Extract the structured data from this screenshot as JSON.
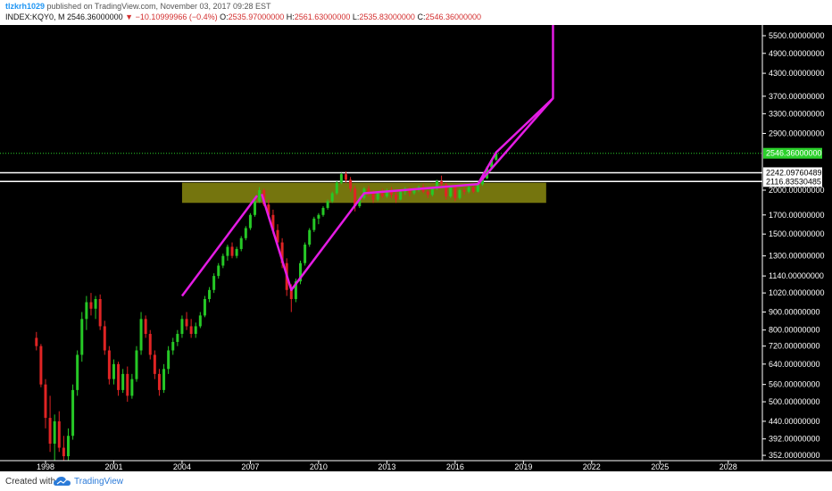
{
  "header": {
    "user": "tlzkrh1029",
    "published": "published on TradingView.com, November 03, 2017 09:28 EST",
    "symbol": "INDEX:KQY0, M",
    "last": "2546.36000000",
    "change": "−10.10999966 (−0.4%)",
    "o_label": "O:",
    "o_value": "2535.97000000",
    "h_label": "H:",
    "h_value": "2561.63000000",
    "l_label": "L:",
    "l_value": "2535.83000000",
    "c_label": "C:",
    "c_value": "2546.36000000"
  },
  "footer": {
    "created_with": "Created with",
    "brand": "TradingView"
  },
  "colors": {
    "background": "#000000",
    "up_candle": "#26c826",
    "down_candle": "#e02424",
    "pattern": "#e41ce4",
    "zone": "#8a8a10",
    "price_line": "#2bd12b"
  },
  "chart_data": {
    "type": "candlestick",
    "y_scale": "log",
    "x_ticks": [
      "1998",
      "2001",
      "2004",
      "2007",
      "2010",
      "2013",
      "2016",
      "2019",
      "2022",
      "2025",
      "2028"
    ],
    "y_ticks": [
      {
        "value": 5500,
        "label": "5500.00000000"
      },
      {
        "value": 4900,
        "label": "4900.00000000"
      },
      {
        "value": 4300,
        "label": "4300.00000000"
      },
      {
        "value": 3700,
        "label": "3700.00000000"
      },
      {
        "value": 3300,
        "label": "3300.00000000"
      },
      {
        "value": 2900,
        "label": "2900.00000000"
      },
      {
        "value": 2000,
        "label": "2000.00000000"
      },
      {
        "value": 1700,
        "label": "1700.00000000"
      },
      {
        "value": 1500,
        "label": "1500.00000000"
      },
      {
        "value": 1300,
        "label": "1300.00000000"
      },
      {
        "value": 1140,
        "label": "1140.00000000"
      },
      {
        "value": 1020,
        "label": "1020.00000000"
      },
      {
        "value": 900,
        "label": "900.00000000"
      },
      {
        "value": 800,
        "label": "800.00000000"
      },
      {
        "value": 720,
        "label": "720.00000000"
      },
      {
        "value": 640,
        "label": "640.00000000"
      },
      {
        "value": 560,
        "label": "560.00000000"
      },
      {
        "value": 500,
        "label": "500.00000000"
      },
      {
        "value": 440,
        "label": "440.00000000"
      },
      {
        "value": 392,
        "label": "392.00000000"
      },
      {
        "value": 352,
        "label": "352.00000000"
      }
    ],
    "ylim": [
      340,
      5900
    ],
    "xlim": [
      1996.0,
      2029.5
    ],
    "last_price": {
      "value": 2546.36,
      "label": "2546.36000000"
    },
    "horizontal_levels": [
      {
        "value": 2242.0976,
        "label": "2242.09760489"
      },
      {
        "value": 2116.8353,
        "label": "2116.83530485"
      }
    ],
    "zone": {
      "x0": 2004.0,
      "x1": 2020.0,
      "y_low": 1840,
      "y_high": 2100
    },
    "pattern_lines": [
      [
        [
          2007.5,
          1950
        ],
        [
          2008.8,
          1040
        ],
        [
          2012.0,
          1960
        ],
        [
          2017.0,
          2080
        ],
        [
          2017.8,
          2560
        ],
        [
          2020.3,
          3650
        ],
        [
          2020.3,
          5950
        ]
      ],
      [
        [
          2004.0,
          1000
        ],
        [
          2007.3,
          1930
        ]
      ],
      [
        [
          2017.0,
          2080
        ],
        [
          2020.3,
          3650
        ]
      ]
    ],
    "candles": [
      {
        "x": 1997.6,
        "o": 760,
        "h": 790,
        "l": 700,
        "c": 720
      },
      {
        "x": 1997.8,
        "o": 720,
        "h": 730,
        "l": 550,
        "c": 560
      },
      {
        "x": 1998.0,
        "o": 560,
        "h": 580,
        "l": 420,
        "c": 450
      },
      {
        "x": 1998.2,
        "o": 450,
        "h": 520,
        "l": 360,
        "c": 380
      },
      {
        "x": 1998.4,
        "o": 380,
        "h": 460,
        "l": 340,
        "c": 440
      },
      {
        "x": 1998.6,
        "o": 440,
        "h": 470,
        "l": 360,
        "c": 370
      },
      {
        "x": 1998.8,
        "o": 370,
        "h": 400,
        "l": 340,
        "c": 350
      },
      {
        "x": 1999.0,
        "o": 350,
        "h": 420,
        "l": 340,
        "c": 400
      },
      {
        "x": 1999.2,
        "o": 400,
        "h": 560,
        "l": 390,
        "c": 540
      },
      {
        "x": 1999.4,
        "o": 540,
        "h": 700,
        "l": 520,
        "c": 680
      },
      {
        "x": 1999.6,
        "o": 680,
        "h": 900,
        "l": 650,
        "c": 860
      },
      {
        "x": 1999.8,
        "o": 860,
        "h": 1000,
        "l": 800,
        "c": 960
      },
      {
        "x": 2000.0,
        "o": 960,
        "h": 1020,
        "l": 880,
        "c": 920
      },
      {
        "x": 2000.2,
        "o": 920,
        "h": 1000,
        "l": 860,
        "c": 980
      },
      {
        "x": 2000.4,
        "o": 980,
        "h": 1010,
        "l": 800,
        "c": 820
      },
      {
        "x": 2000.6,
        "o": 820,
        "h": 850,
        "l": 680,
        "c": 700
      },
      {
        "x": 2000.8,
        "o": 700,
        "h": 720,
        "l": 560,
        "c": 580
      },
      {
        "x": 2001.0,
        "o": 580,
        "h": 660,
        "l": 560,
        "c": 640
      },
      {
        "x": 2001.2,
        "o": 640,
        "h": 650,
        "l": 520,
        "c": 540
      },
      {
        "x": 2001.4,
        "o": 540,
        "h": 620,
        "l": 530,
        "c": 600
      },
      {
        "x": 2001.6,
        "o": 600,
        "h": 630,
        "l": 500,
        "c": 520
      },
      {
        "x": 2001.8,
        "o": 520,
        "h": 600,
        "l": 510,
        "c": 580
      },
      {
        "x": 2002.0,
        "o": 580,
        "h": 720,
        "l": 570,
        "c": 700
      },
      {
        "x": 2002.2,
        "o": 700,
        "h": 900,
        "l": 680,
        "c": 860
      },
      {
        "x": 2002.4,
        "o": 860,
        "h": 880,
        "l": 760,
        "c": 780
      },
      {
        "x": 2002.6,
        "o": 780,
        "h": 800,
        "l": 660,
        "c": 680
      },
      {
        "x": 2002.8,
        "o": 680,
        "h": 700,
        "l": 580,
        "c": 600
      },
      {
        "x": 2003.0,
        "o": 600,
        "h": 620,
        "l": 520,
        "c": 540
      },
      {
        "x": 2003.2,
        "o": 540,
        "h": 640,
        "l": 530,
        "c": 620
      },
      {
        "x": 2003.4,
        "o": 620,
        "h": 720,
        "l": 600,
        "c": 700
      },
      {
        "x": 2003.6,
        "o": 700,
        "h": 760,
        "l": 680,
        "c": 740
      },
      {
        "x": 2003.8,
        "o": 740,
        "h": 800,
        "l": 720,
        "c": 780
      },
      {
        "x": 2004.0,
        "o": 780,
        "h": 880,
        "l": 760,
        "c": 860
      },
      {
        "x": 2004.2,
        "o": 860,
        "h": 900,
        "l": 800,
        "c": 820
      },
      {
        "x": 2004.4,
        "o": 820,
        "h": 860,
        "l": 760,
        "c": 780
      },
      {
        "x": 2004.6,
        "o": 780,
        "h": 840,
        "l": 760,
        "c": 820
      },
      {
        "x": 2004.8,
        "o": 820,
        "h": 900,
        "l": 810,
        "c": 880
      },
      {
        "x": 2005.0,
        "o": 880,
        "h": 1000,
        "l": 870,
        "c": 980
      },
      {
        "x": 2005.2,
        "o": 980,
        "h": 1060,
        "l": 960,
        "c": 1040
      },
      {
        "x": 2005.4,
        "o": 1040,
        "h": 1160,
        "l": 1020,
        "c": 1140
      },
      {
        "x": 2005.6,
        "o": 1140,
        "h": 1240,
        "l": 1120,
        "c": 1220
      },
      {
        "x": 2005.8,
        "o": 1220,
        "h": 1320,
        "l": 1200,
        "c": 1300
      },
      {
        "x": 2006.0,
        "o": 1300,
        "h": 1400,
        "l": 1260,
        "c": 1380
      },
      {
        "x": 2006.2,
        "o": 1380,
        "h": 1420,
        "l": 1280,
        "c": 1300
      },
      {
        "x": 2006.4,
        "o": 1300,
        "h": 1380,
        "l": 1280,
        "c": 1360
      },
      {
        "x": 2006.6,
        "o": 1360,
        "h": 1480,
        "l": 1340,
        "c": 1460
      },
      {
        "x": 2006.8,
        "o": 1460,
        "h": 1580,
        "l": 1440,
        "c": 1560
      },
      {
        "x": 2007.0,
        "o": 1560,
        "h": 1720,
        "l": 1540,
        "c": 1700
      },
      {
        "x": 2007.2,
        "o": 1700,
        "h": 1880,
        "l": 1680,
        "c": 1860
      },
      {
        "x": 2007.4,
        "o": 1860,
        "h": 2040,
        "l": 1840,
        "c": 2000
      },
      {
        "x": 2007.6,
        "o": 2000,
        "h": 2020,
        "l": 1800,
        "c": 1820
      },
      {
        "x": 2007.8,
        "o": 1820,
        "h": 1880,
        "l": 1660,
        "c": 1700
      },
      {
        "x": 2008.0,
        "o": 1700,
        "h": 1760,
        "l": 1500,
        "c": 1540
      },
      {
        "x": 2008.2,
        "o": 1540,
        "h": 1600,
        "l": 1380,
        "c": 1420
      },
      {
        "x": 2008.4,
        "o": 1420,
        "h": 1460,
        "l": 1200,
        "c": 1240
      },
      {
        "x": 2008.6,
        "o": 1240,
        "h": 1280,
        "l": 1000,
        "c": 1040
      },
      {
        "x": 2008.8,
        "o": 1040,
        "h": 1080,
        "l": 900,
        "c": 980
      },
      {
        "x": 2009.0,
        "o": 980,
        "h": 1120,
        "l": 960,
        "c": 1100
      },
      {
        "x": 2009.2,
        "o": 1100,
        "h": 1260,
        "l": 1080,
        "c": 1240
      },
      {
        "x": 2009.4,
        "o": 1240,
        "h": 1420,
        "l": 1220,
        "c": 1400
      },
      {
        "x": 2009.6,
        "o": 1400,
        "h": 1560,
        "l": 1380,
        "c": 1540
      },
      {
        "x": 2009.8,
        "o": 1540,
        "h": 1680,
        "l": 1520,
        "c": 1660
      },
      {
        "x": 2010.0,
        "o": 1660,
        "h": 1720,
        "l": 1600,
        "c": 1700
      },
      {
        "x": 2010.2,
        "o": 1700,
        "h": 1800,
        "l": 1680,
        "c": 1780
      },
      {
        "x": 2010.4,
        "o": 1780,
        "h": 1880,
        "l": 1760,
        "c": 1860
      },
      {
        "x": 2010.6,
        "o": 1860,
        "h": 1980,
        "l": 1840,
        "c": 1960
      },
      {
        "x": 2010.8,
        "o": 1960,
        "h": 2120,
        "l": 1940,
        "c": 2100
      },
      {
        "x": 2011.0,
        "o": 2100,
        "h": 2240,
        "l": 2080,
        "c": 2220
      },
      {
        "x": 2011.2,
        "o": 2220,
        "h": 2260,
        "l": 2100,
        "c": 2140
      },
      {
        "x": 2011.4,
        "o": 2140,
        "h": 2180,
        "l": 1980,
        "c": 2020
      },
      {
        "x": 2011.6,
        "o": 2020,
        "h": 2060,
        "l": 1740,
        "c": 1800
      },
      {
        "x": 2011.8,
        "o": 1800,
        "h": 1920,
        "l": 1780,
        "c": 1900
      },
      {
        "x": 2012.0,
        "o": 1900,
        "h": 2040,
        "l": 1880,
        "c": 2020
      },
      {
        "x": 2012.2,
        "o": 2020,
        "h": 2060,
        "l": 1920,
        "c": 1960
      },
      {
        "x": 2012.4,
        "o": 1960,
        "h": 2000,
        "l": 1840,
        "c": 1880
      },
      {
        "x": 2012.6,
        "o": 1880,
        "h": 1980,
        "l": 1860,
        "c": 1960
      },
      {
        "x": 2012.8,
        "o": 1960,
        "h": 2020,
        "l": 1900,
        "c": 1920
      },
      {
        "x": 2013.0,
        "o": 1920,
        "h": 2020,
        "l": 1900,
        "c": 2000
      },
      {
        "x": 2013.2,
        "o": 2000,
        "h": 2040,
        "l": 1900,
        "c": 1940
      },
      {
        "x": 2013.4,
        "o": 1940,
        "h": 1980,
        "l": 1840,
        "c": 1880
      },
      {
        "x": 2013.6,
        "o": 1880,
        "h": 2000,
        "l": 1870,
        "c": 1980
      },
      {
        "x": 2013.8,
        "o": 1980,
        "h": 2040,
        "l": 1940,
        "c": 2020
      },
      {
        "x": 2014.0,
        "o": 2020,
        "h": 2040,
        "l": 1920,
        "c": 1960
      },
      {
        "x": 2014.2,
        "o": 1960,
        "h": 2020,
        "l": 1940,
        "c": 2000
      },
      {
        "x": 2014.4,
        "o": 2000,
        "h": 2060,
        "l": 1980,
        "c": 2040
      },
      {
        "x": 2014.6,
        "o": 2040,
        "h": 2080,
        "l": 1960,
        "c": 1980
      },
      {
        "x": 2014.8,
        "o": 1980,
        "h": 2000,
        "l": 1900,
        "c": 1940
      },
      {
        "x": 2015.0,
        "o": 1940,
        "h": 2040,
        "l": 1920,
        "c": 2020
      },
      {
        "x": 2015.2,
        "o": 2020,
        "h": 2140,
        "l": 2000,
        "c": 2120
      },
      {
        "x": 2015.4,
        "o": 2120,
        "h": 2200,
        "l": 2060,
        "c": 2080
      },
      {
        "x": 2015.6,
        "o": 2080,
        "h": 2100,
        "l": 1880,
        "c": 1920
      },
      {
        "x": 2015.8,
        "o": 1920,
        "h": 2060,
        "l": 1900,
        "c": 2040
      },
      {
        "x": 2016.0,
        "o": 2040,
        "h": 2060,
        "l": 1860,
        "c": 1900
      },
      {
        "x": 2016.2,
        "o": 1900,
        "h": 2020,
        "l": 1880,
        "c": 2000
      },
      {
        "x": 2016.4,
        "o": 2000,
        "h": 2040,
        "l": 1940,
        "c": 1980
      },
      {
        "x": 2016.6,
        "o": 1980,
        "h": 2060,
        "l": 1960,
        "c": 2040
      },
      {
        "x": 2016.8,
        "o": 2040,
        "h": 2080,
        "l": 1960,
        "c": 1980
      },
      {
        "x": 2017.0,
        "o": 1980,
        "h": 2100,
        "l": 1970,
        "c": 2080
      },
      {
        "x": 2017.2,
        "o": 2080,
        "h": 2180,
        "l": 2060,
        "c": 2160
      },
      {
        "x": 2017.4,
        "o": 2160,
        "h": 2340,
        "l": 2150,
        "c": 2320
      },
      {
        "x": 2017.6,
        "o": 2320,
        "h": 2460,
        "l": 2300,
        "c": 2440
      },
      {
        "x": 2017.8,
        "o": 2440,
        "h": 2580,
        "l": 2420,
        "c": 2546
      }
    ]
  }
}
